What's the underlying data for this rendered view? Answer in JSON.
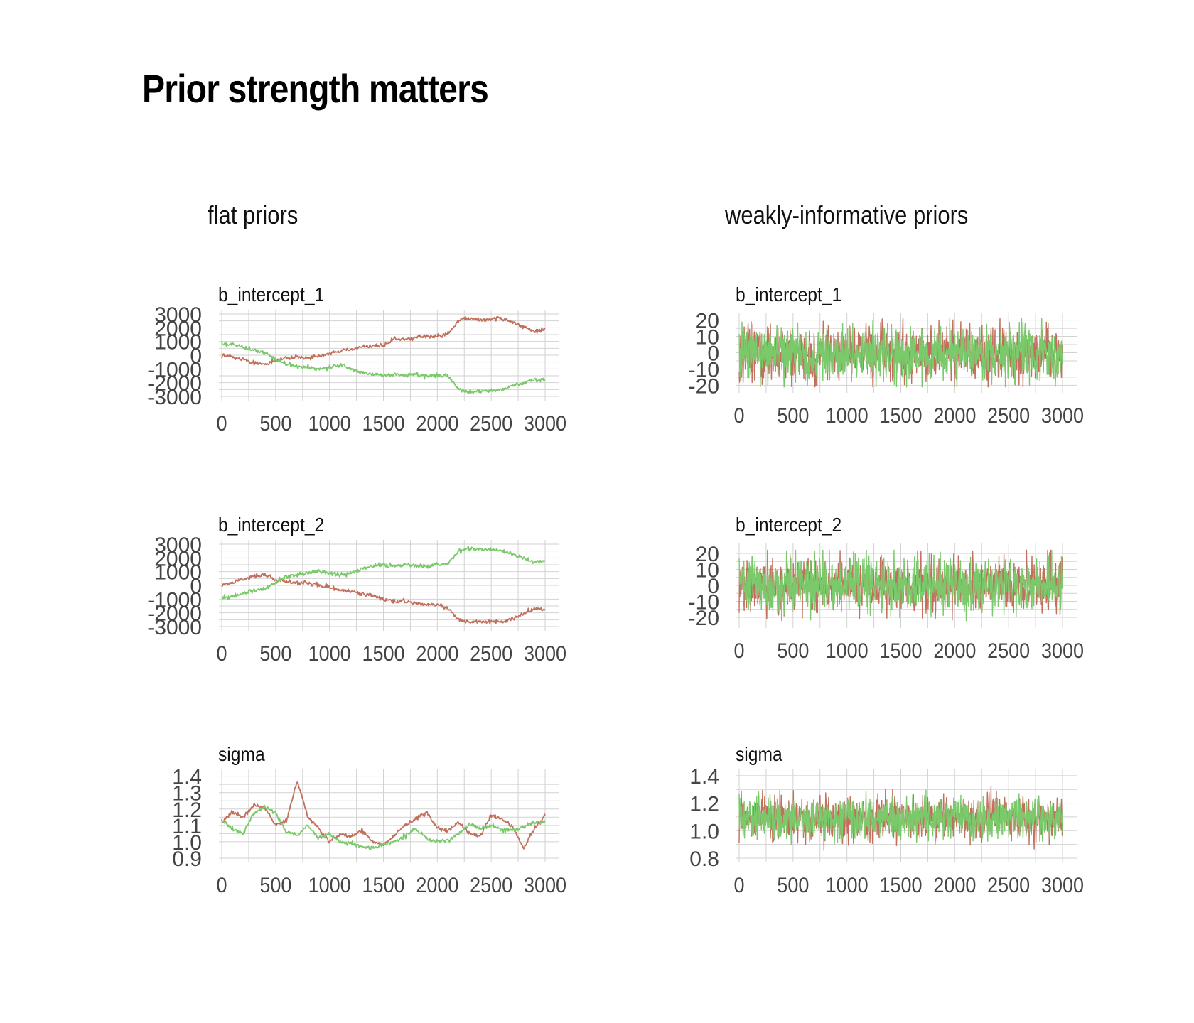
{
  "title": "Prior strength matters",
  "colors": {
    "chain_1": "#c0705c",
    "chain_2": "#7ac96a",
    "grid": "#d2d2d2",
    "text": "#444444"
  },
  "columns": [
    "flat priors",
    "weakly-informative priors"
  ],
  "chart_data": [
    {
      "type": "line",
      "column": "flat priors",
      "title": "b_intercept_1",
      "grid": true,
      "xlim": [
        0,
        3000
      ],
      "ylim": [
        -3000,
        3000
      ],
      "x_ticks": [
        "0",
        "500",
        "1000",
        "1500",
        "2000",
        "2500",
        "3000"
      ],
      "y_ticks": [
        "3000",
        "2000",
        "1000",
        "0",
        "-1000",
        "-2000",
        "-3000"
      ],
      "y_values": [
        3000,
        2000,
        1000,
        0,
        -1000,
        -2000,
        -3000
      ],
      "style": "walk",
      "series": [
        {
          "color": "#c0705c",
          "x": [
            0,
            100,
            200,
            300,
            400,
            500,
            600,
            700,
            800,
            900,
            1000,
            1100,
            1200,
            1300,
            1400,
            1500,
            1600,
            1700,
            1800,
            1900,
            2000,
            2100,
            2200,
            2300,
            2400,
            2500,
            2600,
            2700,
            2800,
            2900,
            3000
          ],
          "y": [
            0,
            -100,
            -300,
            -550,
            -650,
            -400,
            -200,
            -150,
            -150,
            -100,
            100,
            300,
            400,
            600,
            650,
            700,
            1150,
            1150,
            1300,
            1400,
            1400,
            1600,
            2550,
            2700,
            2600,
            2600,
            2700,
            2400,
            2100,
            1700,
            1900
          ]
        },
        {
          "color": "#7ac96a",
          "x": [
            0,
            100,
            200,
            300,
            400,
            500,
            600,
            700,
            800,
            900,
            1000,
            1100,
            1200,
            1300,
            1400,
            1500,
            1600,
            1700,
            1800,
            1900,
            2000,
            2100,
            2200,
            2300,
            2400,
            2500,
            2600,
            2700,
            2800,
            2900,
            3000
          ],
          "y": [
            800,
            800,
            600,
            350,
            150,
            -300,
            -650,
            -800,
            -900,
            -1000,
            -850,
            -700,
            -1000,
            -1300,
            -1400,
            -1500,
            -1400,
            -1500,
            -1400,
            -1500,
            -1500,
            -1500,
            -2500,
            -2700,
            -2600,
            -2600,
            -2500,
            -2200,
            -2000,
            -1800,
            -1800
          ]
        }
      ]
    },
    {
      "type": "line",
      "column": "weakly-informative priors",
      "title": "b_intercept_1",
      "grid": true,
      "xlim": [
        0,
        3000
      ],
      "ylim": [
        -22,
        22
      ],
      "x_ticks": [
        "0",
        "500",
        "1000",
        "1500",
        "2000",
        "2500",
        "3000"
      ],
      "y_ticks": [
        "20",
        "10",
        "0",
        "-10",
        "-20"
      ],
      "y_values": [
        20,
        10,
        0,
        -10,
        -20
      ],
      "style": "noise",
      "center": 0,
      "spread": 8.5,
      "max": 21,
      "series": [
        {
          "color": "#c0705c"
        },
        {
          "color": "#7ac96a"
        }
      ]
    },
    {
      "type": "line",
      "column": "flat priors",
      "title": "b_intercept_2",
      "grid": true,
      "xlim": [
        0,
        3000
      ],
      "ylim": [
        -3000,
        3000
      ],
      "x_ticks": [
        "0",
        "500",
        "1000",
        "1500",
        "2000",
        "2500",
        "3000"
      ],
      "y_ticks": [
        "3000",
        "2000",
        "1000",
        "0",
        "-1000",
        "-2000",
        "-3000"
      ],
      "y_values": [
        3000,
        2000,
        1000,
        0,
        -1000,
        -2000,
        -3000
      ],
      "style": "walk",
      "series": [
        {
          "color": "#c0705c",
          "x": [
            0,
            100,
            200,
            300,
            400,
            500,
            600,
            700,
            800,
            900,
            1000,
            1100,
            1200,
            1300,
            1400,
            1500,
            1600,
            1700,
            1800,
            1900,
            2000,
            2100,
            2200,
            2300,
            2400,
            2500,
            2600,
            2700,
            2800,
            2900,
            3000
          ],
          "y": [
            0,
            200,
            450,
            700,
            750,
            450,
            300,
            200,
            150,
            0,
            -150,
            -300,
            -450,
            -600,
            -700,
            -1050,
            -1200,
            -1150,
            -1300,
            -1400,
            -1400,
            -1700,
            -2500,
            -2700,
            -2600,
            -2600,
            -2650,
            -2400,
            -2100,
            -1700,
            -1800
          ]
        },
        {
          "color": "#7ac96a",
          "x": [
            0,
            100,
            200,
            300,
            400,
            500,
            600,
            700,
            800,
            900,
            1000,
            1100,
            1200,
            1300,
            1400,
            1500,
            1600,
            1700,
            1800,
            1900,
            2000,
            2100,
            2200,
            2300,
            2400,
            2500,
            2600,
            2700,
            2800,
            2900,
            3000
          ],
          "y": [
            -800,
            -800,
            -600,
            -400,
            -200,
            200,
            650,
            800,
            900,
            1000,
            900,
            750,
            900,
            1200,
            1400,
            1500,
            1400,
            1500,
            1450,
            1400,
            1500,
            1600,
            2500,
            2700,
            2600,
            2600,
            2500,
            2200,
            2000,
            1700,
            1800
          ]
        }
      ]
    },
    {
      "type": "line",
      "column": "weakly-informative priors",
      "title": "b_intercept_2",
      "grid": true,
      "xlim": [
        0,
        3000
      ],
      "ylim": [
        -24,
        24
      ],
      "x_ticks": [
        "0",
        "500",
        "1000",
        "1500",
        "2000",
        "2500",
        "3000"
      ],
      "y_ticks": [
        "20",
        "10",
        "0",
        "-10",
        "-20"
      ],
      "y_values": [
        20,
        10,
        0,
        -10,
        -20
      ],
      "style": "noise",
      "center": 0,
      "spread": 8.5,
      "max": 22,
      "series": [
        {
          "color": "#c0705c"
        },
        {
          "color": "#7ac96a"
        }
      ]
    },
    {
      "type": "line",
      "column": "flat priors",
      "title": "sigma",
      "grid": true,
      "xlim": [
        0,
        3000
      ],
      "ylim": [
        0.9,
        1.42
      ],
      "x_ticks": [
        "0",
        "500",
        "1000",
        "1500",
        "2000",
        "2500",
        "3000"
      ],
      "y_ticks": [
        "1.4",
        "1.3",
        "1.2",
        "1.1",
        "1.0",
        "0.9"
      ],
      "y_values": [
        1.4,
        1.3,
        1.2,
        1.1,
        1.0,
        0.9
      ],
      "style": "walk",
      "series": [
        {
          "color": "#c0705c",
          "x": [
            0,
            100,
            200,
            300,
            400,
            500,
            600,
            700,
            800,
            900,
            1000,
            1100,
            1200,
            1300,
            1400,
            1500,
            1600,
            1700,
            1800,
            1900,
            2000,
            2100,
            2200,
            2300,
            2400,
            2500,
            2600,
            2700,
            2800,
            2900,
            3000
          ],
          "y": [
            1.12,
            1.18,
            1.15,
            1.22,
            1.21,
            1.1,
            1.13,
            1.37,
            1.15,
            1.08,
            1.0,
            1.05,
            1.03,
            1.07,
            1.0,
            0.98,
            1.04,
            1.1,
            1.14,
            1.18,
            1.08,
            1.07,
            1.12,
            1.05,
            1.04,
            1.16,
            1.14,
            1.09,
            0.96,
            1.08,
            1.16
          ]
        },
        {
          "color": "#7ac96a",
          "x": [
            0,
            100,
            200,
            300,
            400,
            500,
            600,
            700,
            800,
            900,
            1000,
            1100,
            1200,
            1300,
            1400,
            1500,
            1600,
            1700,
            1800,
            1900,
            2000,
            2100,
            2200,
            2300,
            2400,
            2500,
            2600,
            2700,
            2800,
            2900,
            3000
          ],
          "y": [
            1.13,
            1.08,
            1.05,
            1.18,
            1.21,
            1.18,
            1.06,
            1.04,
            1.1,
            1.02,
            1.05,
            1.0,
            0.99,
            0.97,
            0.96,
            0.98,
            1.0,
            1.04,
            1.08,
            1.02,
            1.0,
            1.01,
            1.05,
            1.11,
            1.08,
            1.1,
            1.07,
            1.07,
            1.09,
            1.12,
            1.13
          ]
        }
      ]
    },
    {
      "type": "line",
      "column": "weakly-informative priors",
      "title": "sigma",
      "grid": true,
      "xlim": [
        0,
        3000
      ],
      "ylim": [
        0.8,
        1.42
      ],
      "x_ticks": [
        "0",
        "500",
        "1000",
        "1500",
        "2000",
        "2500",
        "3000"
      ],
      "y_ticks": [
        "1.4",
        "1.2",
        "1.0",
        "0.8"
      ],
      "y_values": [
        1.4,
        1.2,
        1.0,
        0.8
      ],
      "style": "noise",
      "center": 1.09,
      "spread": 0.075,
      "max": 0.28,
      "series": [
        {
          "color": "#c0705c"
        },
        {
          "color": "#7ac96a"
        }
      ]
    }
  ]
}
